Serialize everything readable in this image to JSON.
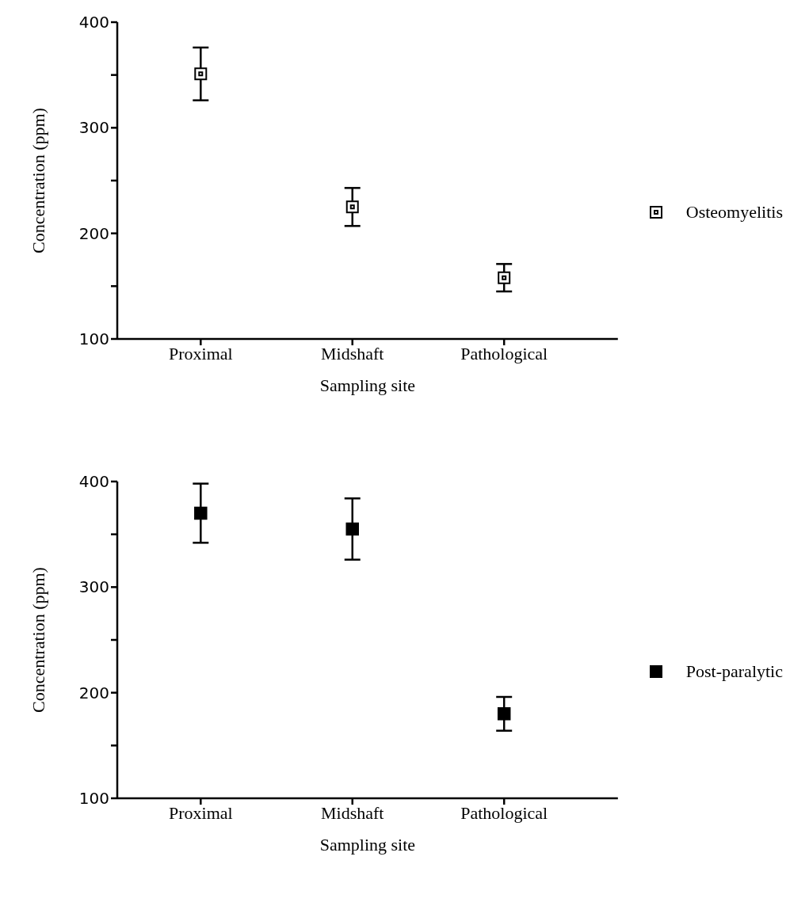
{
  "chart_data": [
    {
      "type": "scatter",
      "xlabel": "Sampling site",
      "ylabel": "Concentration (ppm)",
      "categories": [
        "Proximal",
        "Midshaft",
        "Pathological"
      ],
      "series": [
        {
          "name": "Osteomyelitis",
          "color": "#000000",
          "values": [
            351,
            225,
            158
          ],
          "errors": [
            25,
            18,
            13
          ]
        }
      ],
      "ylim": [
        100,
        400
      ],
      "yticks": [
        100,
        {
          "value": 150,
          "label": null
        },
        200,
        {
          "value": 250,
          "label": null
        },
        300,
        {
          "value": 350,
          "label": null
        },
        400
      ],
      "marker": "square",
      "legend": "right",
      "grid": false
    },
    {
      "type": "scatter",
      "xlabel": "Sampling site",
      "ylabel": "Concentration (ppm)",
      "categories": [
        "Proximal",
        "Midshaft",
        "Pathological"
      ],
      "series": [
        {
          "name": "Post-paralytic",
          "color": "#000000",
          "values": [
            370,
            355,
            180
          ],
          "errors": [
            28,
            29,
            16
          ]
        }
      ],
      "ylim": [
        100,
        400
      ],
      "yticks": [
        100,
        {
          "value": 150,
          "label": null
        },
        200,
        {
          "value": 250,
          "label": null
        },
        300,
        {
          "value": 350,
          "label": null
        },
        400
      ],
      "marker": "square",
      "legend": "right",
      "grid": false
    }
  ]
}
